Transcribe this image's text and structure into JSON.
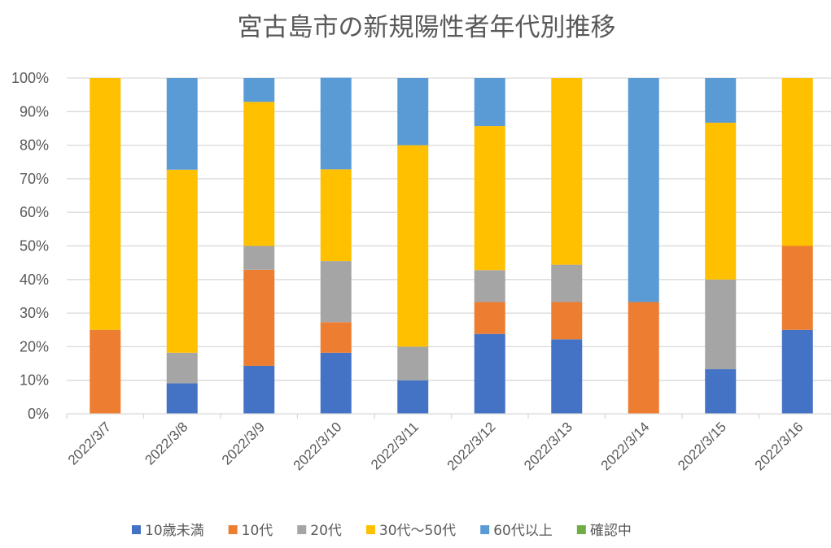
{
  "chart_data": {
    "type": "bar",
    "stacked": "percent",
    "title": "宮古島市の新規陽性者年代別推移",
    "xlabel": "",
    "ylabel": "",
    "ylim": [
      0,
      100
    ],
    "yticks": [
      "0%",
      "10%",
      "20%",
      "30%",
      "40%",
      "50%",
      "60%",
      "70%",
      "80%",
      "90%",
      "100%"
    ],
    "grid": true,
    "legend_position": "bottom",
    "categories": [
      "2022/3/7",
      "2022/3/8",
      "2022/3/9",
      "2022/3/10",
      "2022/3/11",
      "2022/3/12",
      "2022/3/13",
      "2022/3/14",
      "2022/3/15",
      "2022/3/16"
    ],
    "series": [
      {
        "name": "10歳未満",
        "color": "#4472C4",
        "values": [
          0,
          9.1,
          14.3,
          18.2,
          10,
          23.8,
          22.2,
          0,
          13.3,
          25
        ]
      },
      {
        "name": "10代",
        "color": "#ED7D31",
        "values": [
          25,
          0,
          28.6,
          9.1,
          0,
          9.5,
          11.1,
          33.3,
          0,
          25
        ]
      },
      {
        "name": "20代",
        "color": "#A5A5A5",
        "values": [
          0,
          9.1,
          7.1,
          18.2,
          10,
          9.5,
          11.1,
          0,
          26.7,
          0
        ]
      },
      {
        "name": "30代～50代",
        "color": "#FFC000",
        "values": [
          75,
          54.5,
          42.9,
          27.3,
          60,
          42.9,
          55.6,
          0,
          46.7,
          50
        ]
      },
      {
        "name": "60代以上",
        "color": "#5B9BD5",
        "values": [
          0,
          27.3,
          7.1,
          27.3,
          20,
          14.3,
          0,
          66.7,
          13.3,
          0
        ]
      },
      {
        "name": "確認中",
        "color": "#70AD47",
        "values": [
          0,
          0,
          0,
          0,
          0,
          0,
          0,
          0,
          0,
          0
        ]
      }
    ]
  }
}
